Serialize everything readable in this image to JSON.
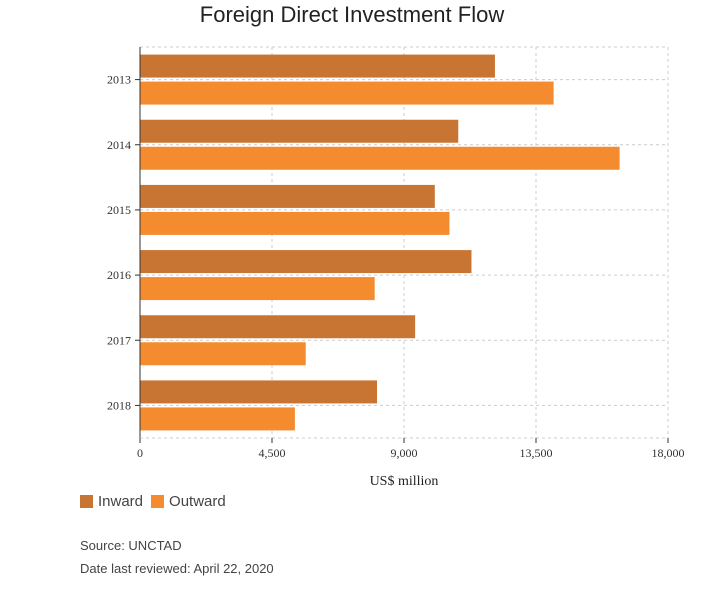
{
  "chart_data": {
    "type": "bar",
    "orientation": "horizontal",
    "title": "Foreign Direct Investment Flow",
    "xlabel": "US$ million",
    "ylabel": "",
    "categories": [
      "2013",
      "2014",
      "2015",
      "2016",
      "2017",
      "2018"
    ],
    "series": [
      {
        "name": "Inward",
        "color": "#c87533",
        "values": [
          12100,
          10850,
          10050,
          11300,
          9380,
          8080
        ]
      },
      {
        "name": "Outward",
        "color": "#f58b2f",
        "values": [
          14100,
          16350,
          10550,
          8000,
          5650,
          5280
        ]
      }
    ],
    "xlim": [
      0,
      18000
    ],
    "xticks": [
      "0",
      "4,500",
      "9,000",
      "13,500",
      "18,000"
    ],
    "xtick_values": [
      0,
      4500,
      9000,
      13500,
      18000
    ],
    "grid": true,
    "legend_position": "bottom-left"
  },
  "footer": {
    "source": "Source: UNCTAD",
    "reviewed": "Date last reviewed: April 22, 2020"
  }
}
